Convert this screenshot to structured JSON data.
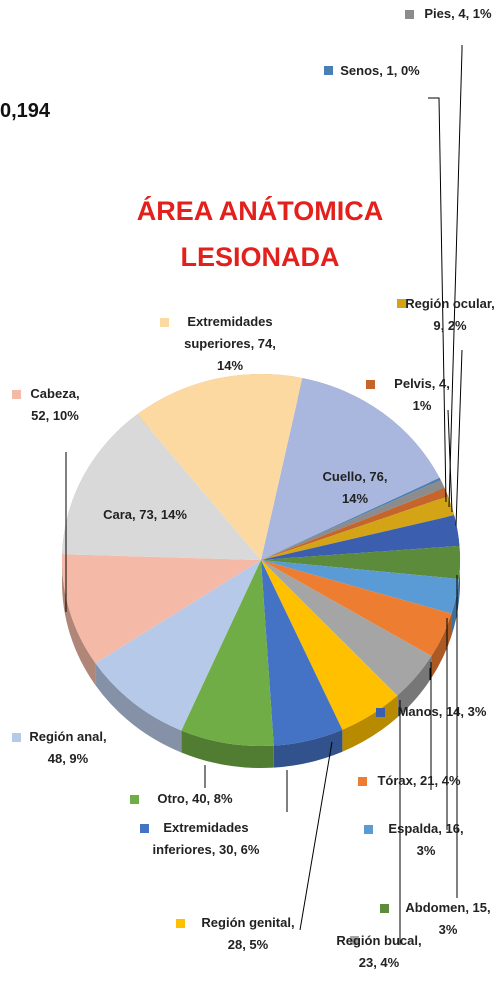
{
  "chart_data": {
    "type": "pie3d",
    "title": "ÁREA ANÁTOMICA LESIONADA",
    "corner_text": "0,194",
    "values": [
      76,
      1,
      4,
      4,
      9,
      14,
      15,
      16,
      21,
      23,
      28,
      30,
      40,
      48,
      52,
      73,
      74
    ],
    "value_labels": [
      "Cuello, 76, 14%",
      "Senos, 1, 0%",
      "Pies, 4, 1%",
      "Pelvis, 4, 1%",
      "Región ocular, 9, 2%",
      "Manos, 14, 3%",
      "Abdomen, 15, 3%",
      "Espalda, 16, 3%",
      "Tórax, 21, 4%",
      "Región bucal, 23, 4%",
      "Región genital, 28, 5%",
      "Extremidades inferiores, 30, 6%",
      "Otro, 40, 8%",
      "Región anal, 48, 9%",
      "Cabeza, 52, 10%",
      "Cara, 73, 14%",
      "Extremidades superiores, 74, 14%"
    ],
    "colors": [
      "#a9b7de",
      "#4a7eb5",
      "#8c8c8c",
      "#c5652c",
      "#d4a417",
      "#3b5fae",
      "#5b8b3b",
      "#5b9bd5",
      "#ed7d31",
      "#a5a5a5",
      "#ffc000",
      "#4472c4",
      "#70ad47",
      "#b7c9e8",
      "#f4baa7",
      "#d9d9d9",
      "#fdd9a2"
    ]
  }
}
